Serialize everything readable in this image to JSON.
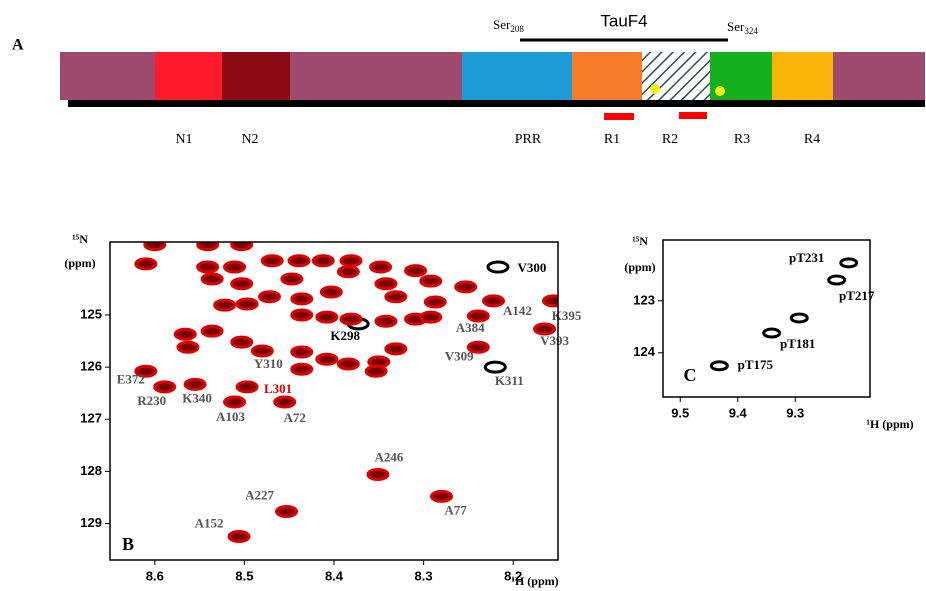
{
  "panel_a": {
    "label": "A",
    "start": {
      "text": "Ser",
      "sub": "208"
    },
    "fragment": "TauF4",
    "end": {
      "text": "Ser",
      "sub": "324"
    },
    "domains": [
      "N1",
      "N2",
      "PRR",
      "R1",
      "R2",
      "R3",
      "R4"
    ]
  },
  "chart_data": [
    {
      "type": "scatter",
      "panel_label": "B",
      "ylabel_nucleus": "¹⁵N",
      "ylabel_unit": "(ppm)",
      "xlabel": "¹H (ppm)",
      "xlim": [
        8.65,
        8.15
      ],
      "ylim": [
        123.6,
        129.7
      ],
      "xticks": [
        8.6,
        8.5,
        8.4,
        8.3,
        8.2
      ],
      "yticks": [
        125,
        126,
        127,
        128,
        129
      ],
      "series": [
        {
          "labels": [
            "V300",
            "K395",
            "A142",
            "A384",
            "K298",
            "V393",
            "V309",
            "K311",
            "Y310",
            "E372",
            "R230",
            "K340",
            "L301",
            "A103",
            "A72",
            "A246",
            "A227",
            "A77",
            "A152"
          ],
          "x": [
            8.217,
            8.155,
            8.222,
            8.239,
            8.373,
            8.165,
            8.239,
            8.22,
            8.48,
            8.61,
            8.589,
            8.555,
            8.497,
            8.511,
            8.455,
            8.351,
            8.453,
            8.28,
            8.506
          ],
          "values": [
            124.08,
            124.73,
            124.73,
            125.02,
            125.17,
            125.27,
            125.62,
            126.0,
            125.69,
            126.08,
            126.38,
            126.33,
            126.38,
            126.67,
            126.67,
            128.06,
            128.77,
            128.48,
            129.25
          ],
          "colors": [
            "#000000",
            "#e00000",
            "#e00000",
            "#e00000",
            "#000000",
            "#e00000",
            "#e00000",
            "#000000",
            "#e00000",
            "#e00000",
            "#e00000",
            "#e00000",
            "#e00000",
            "#e00000",
            "#e00000",
            "#e00000",
            "#e00000",
            "#e00000",
            "#e00000"
          ],
          "label_colors": [
            "#000000",
            "#555555",
            "#555555",
            "#555555",
            "#000000",
            "#555555",
            "#555555",
            "#555555",
            "#555555",
            "#555555",
            "#555555",
            "#555555",
            "#e00000",
            "#555555",
            "#555555",
            "#555555",
            "#555555",
            "#555555",
            "#555555"
          ]
        },
        {
          "color": "#e00000",
          "x": [
            8.6,
            8.541,
            8.503,
            8.541,
            8.511,
            8.469,
            8.439,
            8.412,
            8.381,
            8.348,
            8.309,
            8.61,
            8.536,
            8.503,
            8.447,
            8.384,
            8.342,
            8.292,
            8.522,
            8.497,
            8.472,
            8.436,
            8.403,
            8.436,
            8.408,
            8.331,
            8.287,
            8.253,
            8.381,
            8.342,
            8.309,
            8.292,
            8.566,
            8.536,
            8.563,
            8.503,
            8.436,
            8.408,
            8.384,
            8.35,
            8.331,
            8.353,
            8.436
          ],
          "values": [
            123.65,
            123.65,
            123.65,
            124.08,
            124.08,
            123.96,
            123.96,
            123.96,
            123.96,
            124.08,
            124.15,
            124.02,
            124.31,
            124.4,
            124.31,
            124.17,
            124.4,
            124.35,
            124.81,
            124.79,
            124.65,
            124.69,
            124.56,
            125.0,
            125.04,
            124.65,
            124.75,
            124.46,
            125.08,
            125.12,
            125.08,
            125.04,
            125.37,
            125.31,
            125.62,
            125.52,
            125.71,
            125.85,
            125.94,
            125.9,
            125.65,
            126.08,
            126.04
          ]
        }
      ]
    },
    {
      "type": "scatter",
      "panel_label": "C",
      "ylabel_nucleus": "¹⁵N",
      "ylabel_unit": "(ppm)",
      "xlabel": "¹H (ppm)",
      "xlim": [
        9.53,
        9.17
      ],
      "ylim": [
        121.83,
        124.85
      ],
      "xticks": [
        9.5,
        9.4,
        9.3
      ],
      "yticks": [
        123,
        124
      ],
      "series": [
        {
          "labels": [
            "pT231",
            "pT217",
            "pT181",
            "pT175"
          ],
          "x": [
            9.207,
            9.228,
            9.341,
            9.432
          ],
          "values": [
            122.27,
            122.6,
            123.62,
            124.25
          ],
          "colors": [
            "#000000",
            "#000000",
            "#000000",
            "#000000"
          ],
          "label_colors": [
            "#000000",
            "#000000",
            "#000000",
            "#000000"
          ]
        },
        {
          "color": "#000000",
          "x": [
            9.293
          ],
          "values": [
            123.33
          ]
        }
      ]
    }
  ]
}
